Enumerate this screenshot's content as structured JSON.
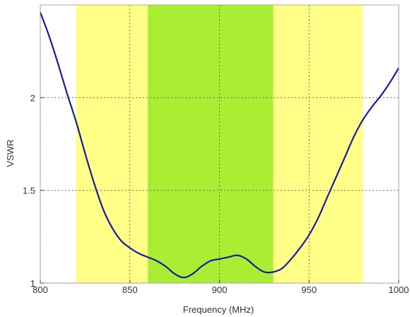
{
  "chart_data": {
    "type": "line",
    "title": "",
    "xlabel": "Frequency (MHz)",
    "ylabel": "VSWR",
    "xlim": [
      800,
      1000
    ],
    "ylim": [
      1,
      2.5
    ],
    "x_ticks": [
      "800",
      "850",
      "900",
      "950",
      "1000"
    ],
    "y_ticks": [
      "1",
      "1.5",
      "2"
    ],
    "grid": true,
    "bands": [
      {
        "from": 820,
        "to": 980,
        "color": "#ffff88"
      },
      {
        "from": 860,
        "to": 930,
        "color": "#aaee33"
      }
    ],
    "series": [
      {
        "color": "#1a1aa0",
        "x": [
          800,
          805,
          810,
          815,
          820,
          825,
          830,
          835,
          840,
          845,
          850,
          855,
          860,
          865,
          870,
          875,
          880,
          885,
          890,
          895,
          900,
          905,
          910,
          915,
          920,
          925,
          930,
          935,
          940,
          945,
          950,
          955,
          960,
          965,
          970,
          975,
          980,
          985,
          990,
          995,
          1000
        ],
        "y": [
          2.46,
          2.33,
          2.18,
          2.02,
          1.87,
          1.7,
          1.54,
          1.4,
          1.3,
          1.23,
          1.19,
          1.16,
          1.14,
          1.12,
          1.09,
          1.05,
          1.03,
          1.05,
          1.09,
          1.12,
          1.13,
          1.14,
          1.15,
          1.13,
          1.09,
          1.06,
          1.06,
          1.08,
          1.13,
          1.19,
          1.26,
          1.35,
          1.46,
          1.57,
          1.68,
          1.79,
          1.88,
          1.95,
          2.01,
          2.08,
          2.16
        ]
      }
    ]
  }
}
